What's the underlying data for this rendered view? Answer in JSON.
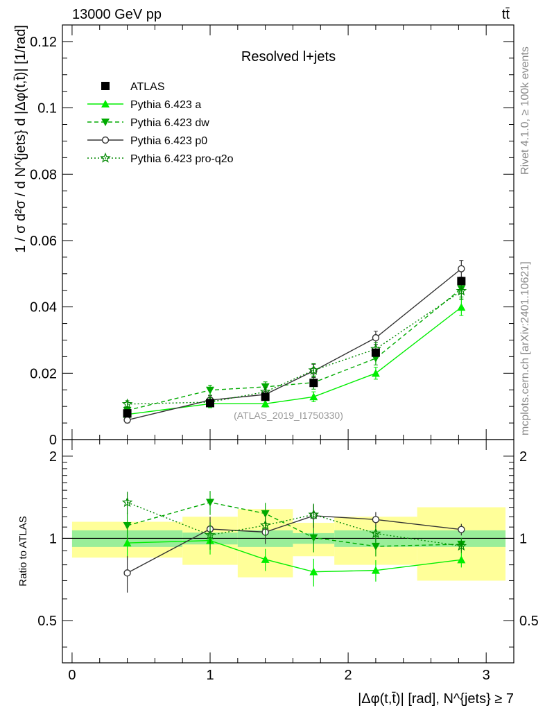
{
  "header": {
    "energy_label": "13000 GeV pp",
    "process_label": "tt̄"
  },
  "side_labels": {
    "rivet": "Rivet 4.1.0, ≥ 100k events",
    "mcplots": "mcplots.cern.ch [arXiv:2401.10621]"
  },
  "colors": {
    "atlas": "#000000",
    "pythia_a": "#00ee00",
    "pythia_dw": "#00aa00",
    "pythia_p0": "#333333",
    "pythia_proq2o": "#008800",
    "band_outer": "#ffff99",
    "band_inner": "#99ee99"
  },
  "chart_data": {
    "type": "line",
    "title": "Resolved l+jets",
    "analysis_tag": "(ATLAS_2019_I1750330)",
    "xlabel": "|Δφ(t,t̄)| [rad], N^{jets} ≥ 7",
    "ylabel": "1 / σ d²σ / d N^{jets} d |Δφ(t,t̄)| [1/rad]",
    "ratio_ylabel": "Ratio to ATLAS",
    "xlim": [
      -0.07,
      3.2
    ],
    "ylim": [
      0,
      0.125
    ],
    "ratio_ylim": [
      0.35,
      2.3
    ],
    "x_ticks": [
      0,
      1,
      2,
      3
    ],
    "y_ticks": [
      0.02,
      0.04,
      0.06,
      0.08,
      0.1,
      0.12
    ],
    "y_tick_labels": [
      "0.02",
      "0.04",
      "0.06",
      "0.08",
      "0.1",
      "0.12"
    ],
    "y_zero_label": "0",
    "ratio_ticks": [
      0.5,
      1,
      2
    ],
    "ratio_tick_labels": [
      "0.5",
      "1",
      "2"
    ],
    "bin_edges": [
      0,
      0.8,
      1.2,
      1.6,
      1.9,
      2.5,
      3.14
    ],
    "x": [
      0.4,
      1.0,
      1.4,
      1.75,
      2.2,
      2.82
    ],
    "data": {
      "name": "ATLAS",
      "values": [
        0.0079,
        0.011,
        0.0129,
        0.0171,
        0.0262,
        0.0478
      ],
      "band_inner_rel": [
        0.07,
        0.05,
        0.07,
        0.045,
        0.07,
        0.07
      ],
      "band_outer_rel": [
        0.15,
        0.2,
        0.28,
        0.14,
        0.2,
        0.3
      ]
    },
    "series": [
      {
        "name": "Pythia 6.423 a",
        "values": [
          0.0076,
          0.0108,
          0.0108,
          0.0129,
          0.02,
          0.0399
        ],
        "errors": [
          0.001,
          0.0012,
          0.001,
          0.0015,
          0.0018,
          0.0025
        ]
      },
      {
        "name": "Pythia 6.423 dw",
        "values": [
          0.0088,
          0.0149,
          0.0159,
          0.0172,
          0.0245,
          0.0455
        ],
        "errors": [
          0.001,
          0.0015,
          0.0015,
          0.002,
          0.002,
          0.0025
        ]
      },
      {
        "name": "Pythia 6.423 p0",
        "values": [
          0.0059,
          0.0119,
          0.0136,
          0.0207,
          0.0307,
          0.0515
        ],
        "errors": [
          0.0009,
          0.0013,
          0.0013,
          0.002,
          0.002,
          0.0025
        ]
      },
      {
        "name": "Pythia 6.423 pro-q2o",
        "values": [
          0.0107,
          0.0113,
          0.0144,
          0.0209,
          0.0273,
          0.0448
        ],
        "errors": [
          0.001,
          0.0013,
          0.0013,
          0.002,
          0.002,
          0.0025
        ]
      }
    ]
  }
}
